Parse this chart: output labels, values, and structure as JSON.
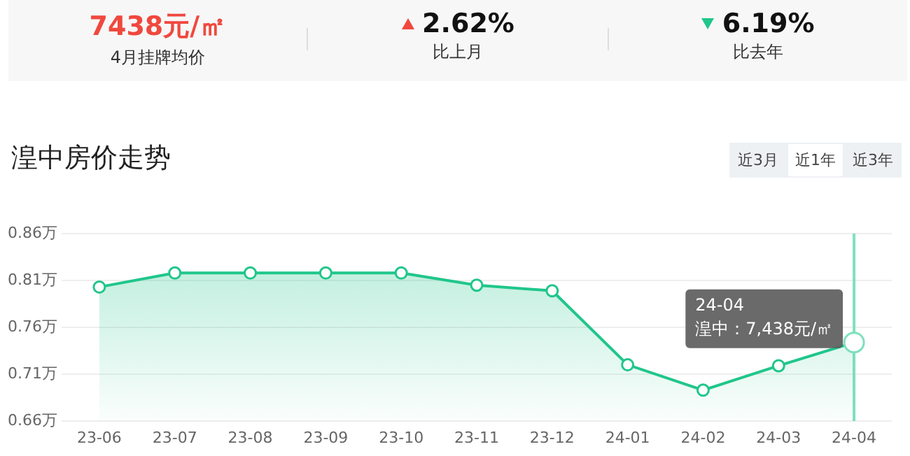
{
  "chart_data": [
    {
      "type": "other",
      "annotations": [
        {
          "text": "7438元/㎡",
          "x": null,
          "y": null
        },
        "4月挂牌均价",
        "2.62%",
        "比上月",
        "6.19%",
        "比去年"
      ]
    },
    {
      "type": "area",
      "title": "湟中房价走势",
      "categories": [
        "23-06",
        "23-07",
        "23-08",
        "23-09",
        "23-10",
        "23-11",
        "23-12",
        "24-01",
        "24-02",
        "24-03",
        "24-04"
      ],
      "values": [
        0.803,
        0.818,
        0.818,
        0.818,
        0.818,
        0.805,
        0.799,
        0.72,
        0.693,
        0.719,
        0.7438
      ],
      "color": "#20c68b",
      "ylim": [
        0.66,
        0.86
      ],
      "yticks": [
        {
          "value": 0.66,
          "label": "0.66万"
        },
        {
          "value": 0.71,
          "label": "0.71万"
        },
        {
          "value": 0.76,
          "label": "0.76万"
        },
        {
          "value": 0.81,
          "label": "0.81万"
        },
        {
          "value": 0.86,
          "label": "0.86万"
        }
      ],
      "grid": "y",
      "legend": false,
      "marker": "circle",
      "ref_lines": [
        {
          "axis": "x",
          "value": "24-04",
          "color": "#7fe0bd"
        }
      ],
      "annotations": [
        {
          "text": "24-04\n湟中：7,438元/㎡",
          "x": "24-04",
          "y": 0.7438
        },
        "近3月",
        "近1年",
        "近3年"
      ]
    }
  ]
}
